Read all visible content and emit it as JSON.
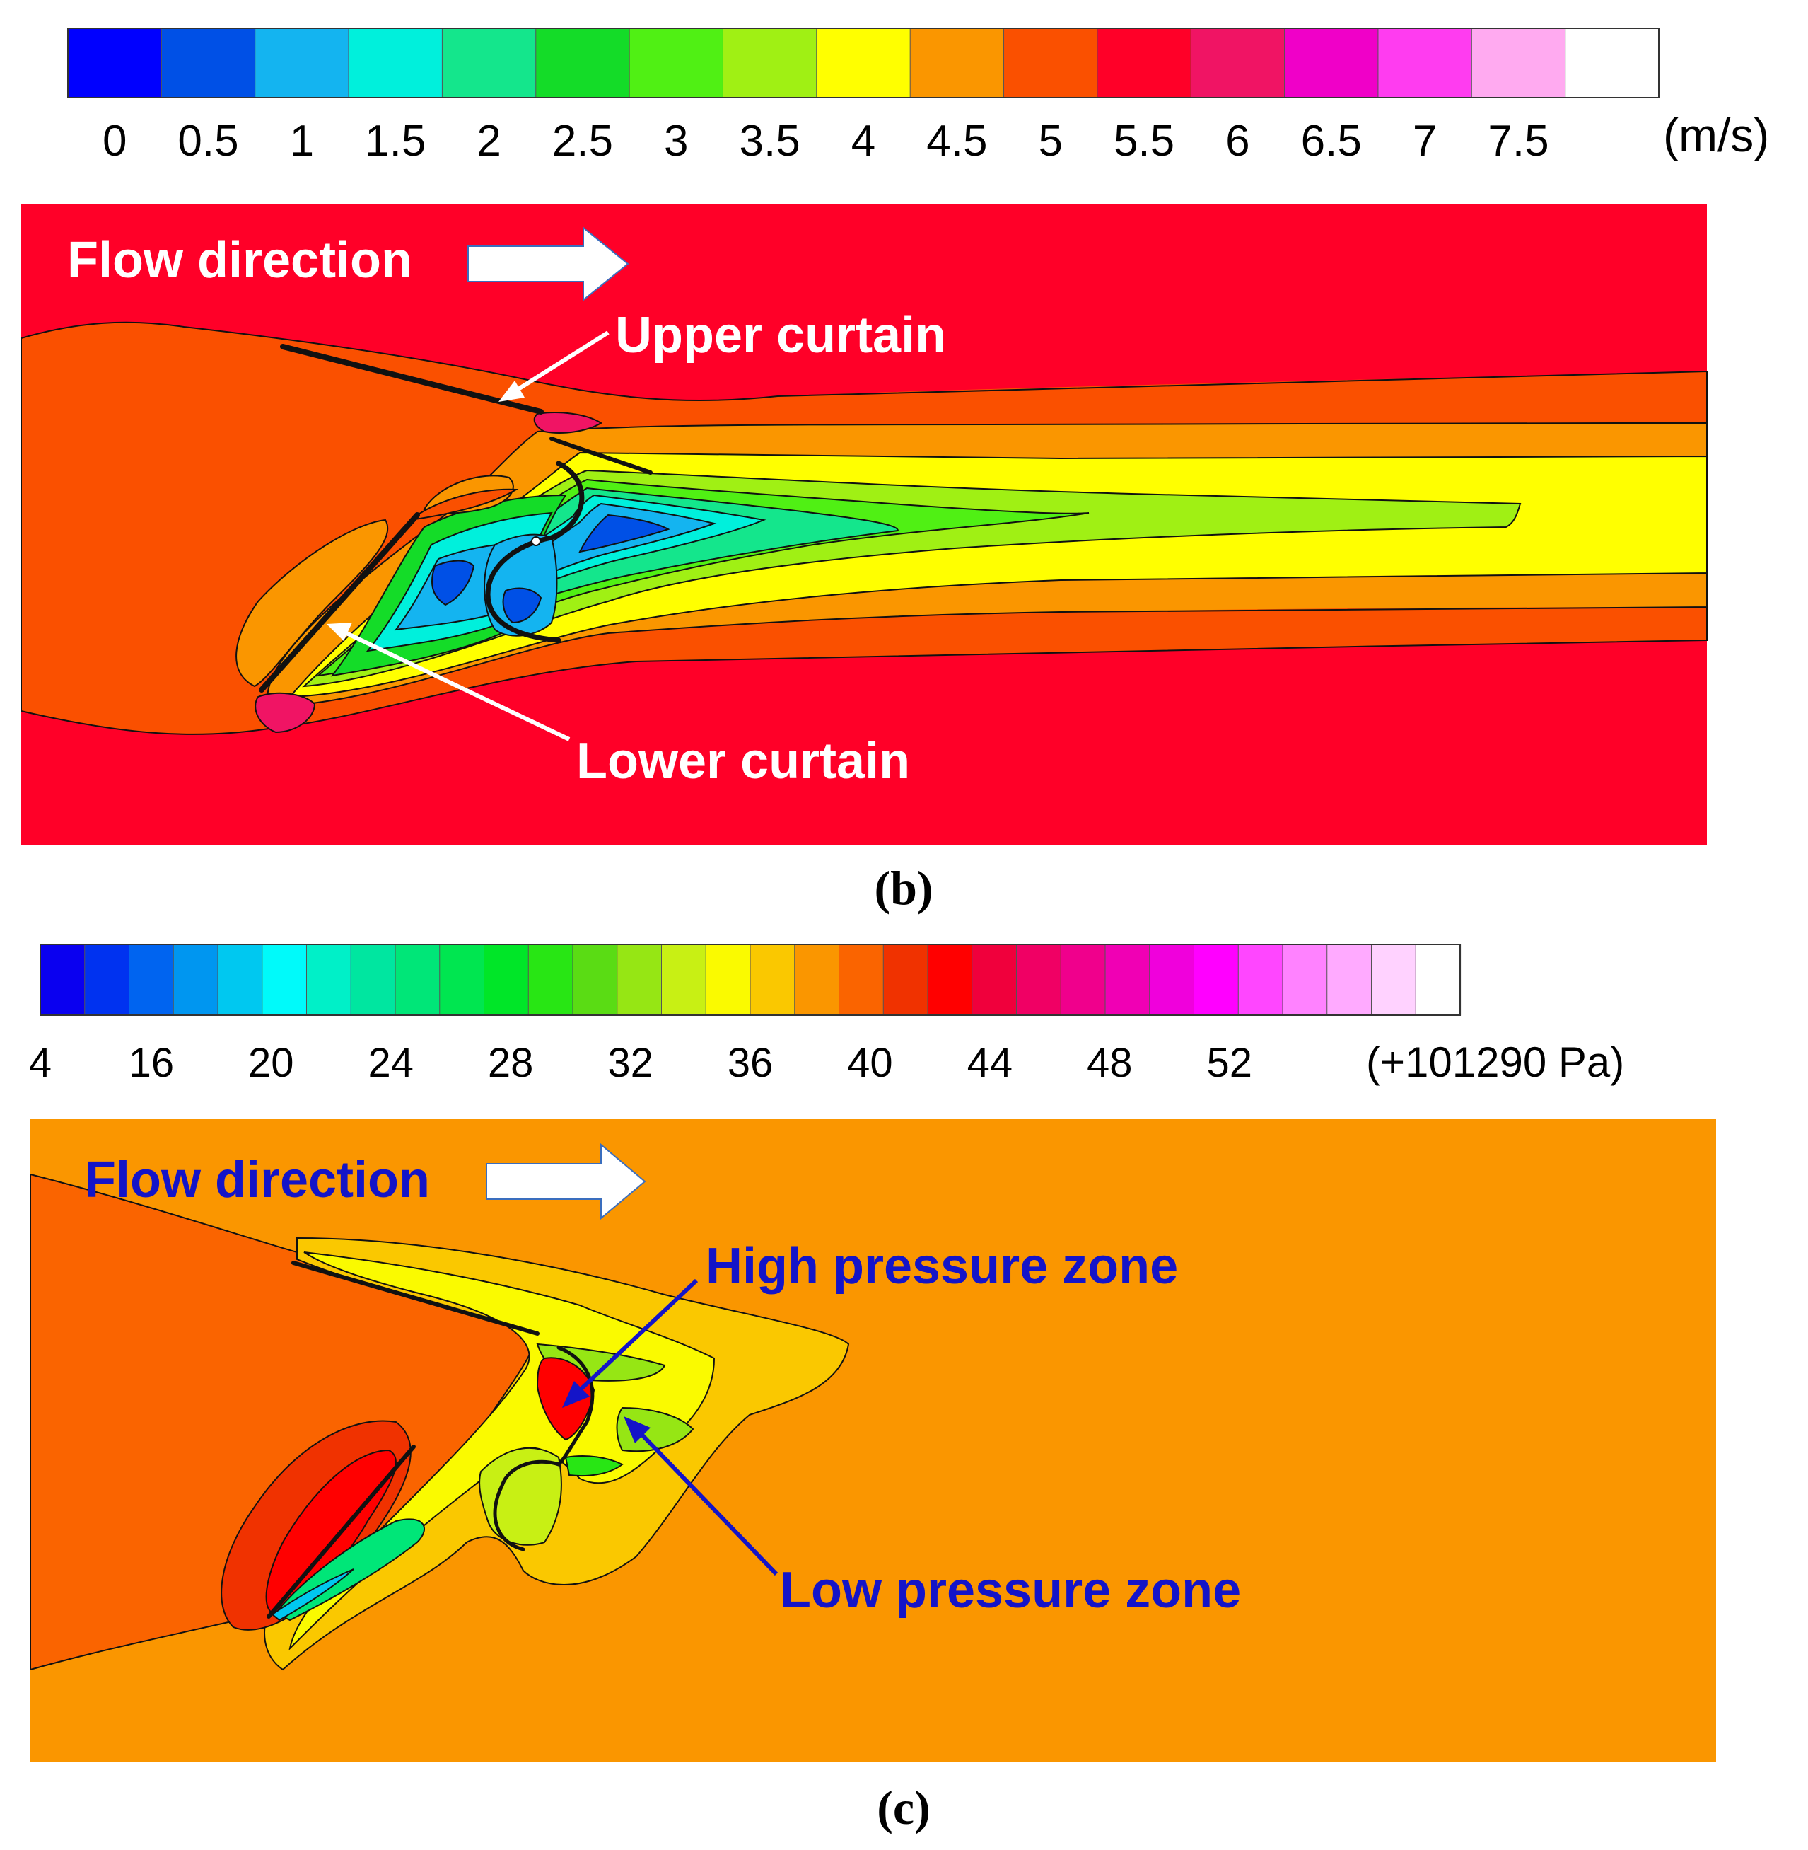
{
  "panel_b": {
    "colorbar": {
      "colors": [
        "#0000ff",
        "#0050e6",
        "#14b4f0",
        "#00f0dc",
        "#14e68c",
        "#14dc28",
        "#50f014",
        "#a0f014",
        "#ffff00",
        "#fa9600",
        "#fa5000",
        "#ff0028",
        "#f01464",
        "#f000c8",
        "#ff3cf0",
        "#ffaaf0",
        "#ffffff"
      ],
      "ticks": [
        "0",
        "0.5",
        "1",
        "1.5",
        "2",
        "2.5",
        "3",
        "3.5",
        "4",
        "4.5",
        "5",
        "5.5",
        "6",
        "6.5",
        "7",
        "7.5"
      ],
      "unit": "(m/s)"
    },
    "labels": {
      "flow": "Flow direction",
      "upper": "Upper curtain",
      "lower": "Lower curtain"
    },
    "caption": "(b)"
  },
  "panel_c": {
    "colorbar": {
      "colors": [
        "#0a00f0",
        "#0032f0",
        "#0064f0",
        "#0096f0",
        "#00c8f0",
        "#00fafa",
        "#00f0c8",
        "#00e6a0",
        "#00e678",
        "#00e650",
        "#00e628",
        "#28e614",
        "#5adc14",
        "#96e614",
        "#c8f014",
        "#fafa00",
        "#fac800",
        "#fa9600",
        "#fa6400",
        "#f03200",
        "#ff0000",
        "#f0003c",
        "#f00064",
        "#f0008c",
        "#f000b4",
        "#f000dc",
        "#ff00ff",
        "#ff46ff",
        "#ff82ff",
        "#ffaaff",
        "#ffd2ff",
        "#ffffff"
      ],
      "ticks": [
        "4",
        "16",
        "20",
        "24",
        "28",
        "32",
        "36",
        "40",
        "44",
        "48",
        "52"
      ],
      "unit": "(+101290 Pa)"
    },
    "labels": {
      "flow": "Flow direction",
      "high": "High pressure zone",
      "low": "Low pressure zone"
    },
    "caption": "(c)"
  }
}
